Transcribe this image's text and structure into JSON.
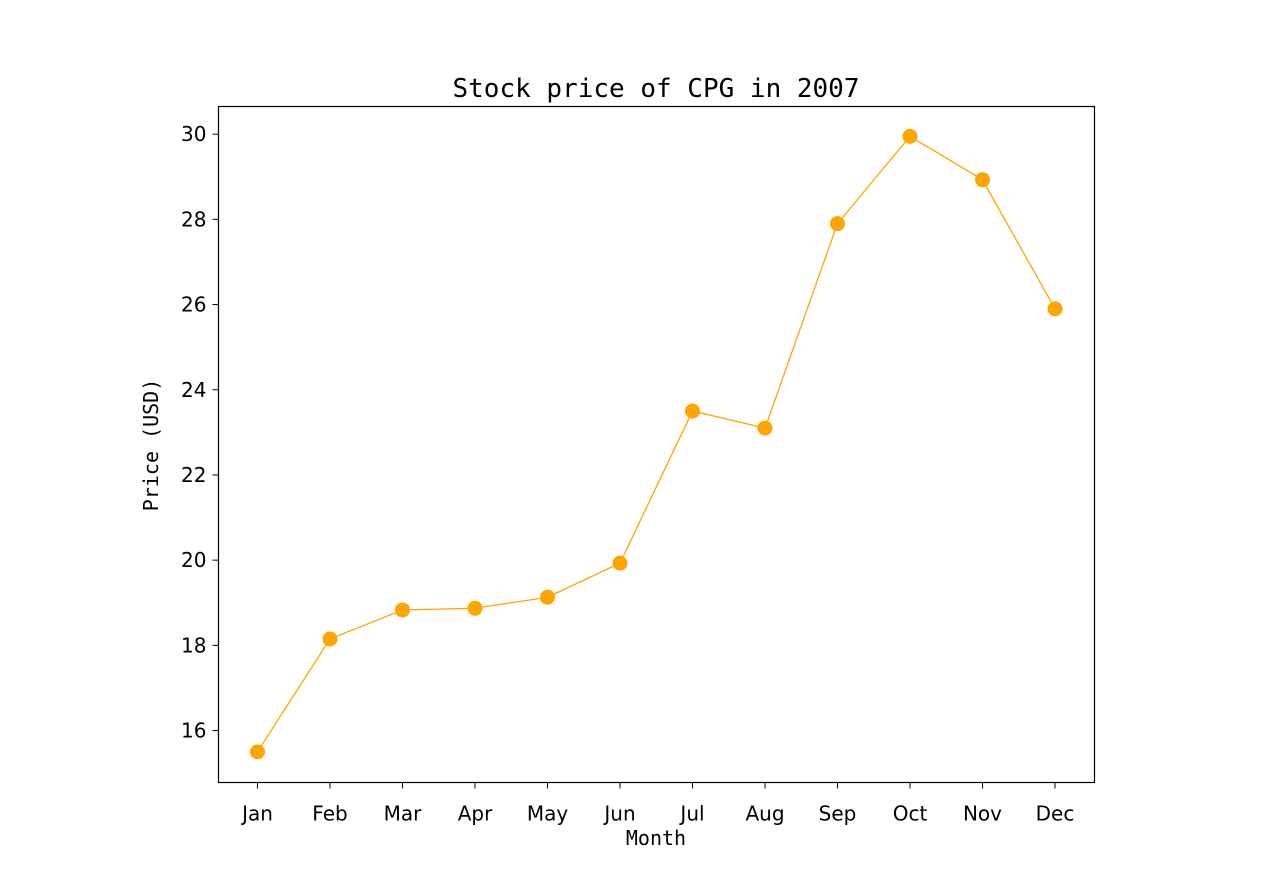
{
  "chart_data": {
    "type": "line",
    "title": "Stock price of CPG in 2007",
    "xlabel": "Month",
    "ylabel": "Price (USD)",
    "categories": [
      "Jan",
      "Feb",
      "Mar",
      "Apr",
      "May",
      "Jun",
      "Jul",
      "Aug",
      "Sep",
      "Oct",
      "Nov",
      "Dec"
    ],
    "series": [
      {
        "color": "#FFA500",
        "marker": "circle",
        "values": [
          15.5,
          18.15,
          18.83,
          18.87,
          19.13,
          19.93,
          23.5,
          23.1,
          27.9,
          29.95,
          28.93,
          25.9
        ]
      }
    ],
    "ylim": [
      14.78,
      30.65
    ],
    "yticks": [
      16,
      18,
      20,
      22,
      24,
      26,
      28,
      30
    ],
    "grid": false,
    "legend": "none"
  }
}
